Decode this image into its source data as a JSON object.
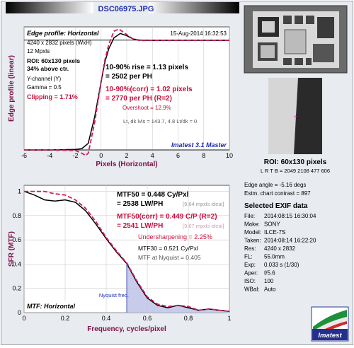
{
  "file_title": "DSC06975.JPG",
  "top_plot": {
    "heading": "Edge profile: Horizontal",
    "timestamp": "15-Aug-2014 16:32:53",
    "info_lines": [
      "4240 x 2832 pixels (WxH)",
      "12 Mpxls"
    ],
    "roi_line1": "ROI: 60x130 pixels",
    "roi_line2": "34% above ctr.",
    "channel": "Y-channel (Y)",
    "gamma": "Gamma = 0.5",
    "clipping": "Clipping = 1.71%",
    "rise_line1": "10-90% rise = 1.13 pixels",
    "rise_line2": "= 2502 per PH",
    "corr_line1": "10-90%(corr) = 1.02 pixels",
    "corr_line2": "= 2770 per PH  (R=2)",
    "overshoot": "Overshoot = 12.9%",
    "lt_dk": "Lt, dk lvls = 143.7, 4.8   Lt/dk = 0",
    "brand": "Imatest 3.1 Master",
    "ylabel": "Edge profile (linear)",
    "xlabel": "Pixels (Horizontal)"
  },
  "bottom_plot": {
    "mtf50_line1": "MTF50 = 0.448 Cy/Pxl",
    "mtf50_line2": "= 2538 LW/PH",
    "mtf50_ideal": "[9.64 mpxls ideal]",
    "mtf50c_line1": "MTF50(corr) = 0.449 C/P  (R=2)",
    "mtf50c_line2": "= 2541 LW/PH",
    "mtf50c_ideal": "[9.67 mpxls ideal]",
    "undersharpening": "Undersharpening = 2.25%",
    "mtf30": "MTF30 = 0.521 Cy/Pxl",
    "nyquist_mtf": "MTF at Nyquist = 0.405",
    "nyquist_label": "Nyquist freq.",
    "corner_label": "MTF: Horizontal",
    "ylabel": "SFR (MTF)",
    "xlabel": "Frequency, cycles/pixel"
  },
  "side": {
    "roi_title": "ROI:  60x130 pixels",
    "roi_coords": "L R T B = 2049 2108  477 606",
    "edge_angle": "Edge angle = -5.16 degs",
    "contrast": "Estm. chart contrast = 897",
    "exif_title": "Selected EXIF data",
    "exif": [
      {
        "k": "File:",
        "v": "2014:08:15 16:30:04"
      },
      {
        "k": "Make:",
        "v": "SONY"
      },
      {
        "k": "Model:",
        "v": "ILCE-7S"
      },
      {
        "k": "Taken:",
        "v": "2014:08:14 16:22:20"
      },
      {
        "k": "Res:",
        "v": "4240 x 2832"
      },
      {
        "k": "FL:",
        "v": "55.0mm"
      },
      {
        "k": "Exp:",
        "v": "0.033 s  (1/30)"
      },
      {
        "k": "Aper:",
        "v": "f/5.6"
      },
      {
        "k": "ISO:",
        "v": "100"
      },
      {
        "k": "WBal:",
        "v": "Auto"
      }
    ],
    "logo_text": "Imatest"
  },
  "colors": {
    "measured": "#000000",
    "corrected": "#cc1f5a",
    "accent": "#c8103c",
    "brand_blue": "#1f2fa8"
  },
  "chart_data": [
    {
      "type": "line",
      "title": "Edge profile: Horizontal",
      "xlabel": "Pixels (Horizontal)",
      "ylabel": "Edge profile (linear)",
      "xlim": [
        -6,
        10
      ],
      "ylim": [
        0,
        1.12
      ],
      "xticks": [
        -6,
        -4,
        -2,
        0,
        2,
        4,
        6,
        8,
        10
      ],
      "grid": true,
      "series": [
        {
          "style": "solid",
          "color": "#000000",
          "x": [
            -6,
            -4,
            -2,
            -1.5,
            -1,
            -0.5,
            0,
            0.3,
            0.6,
            1,
            1.5,
            2,
            2.5,
            3,
            4,
            6,
            8,
            10
          ],
          "y": [
            0,
            0,
            0.005,
            0.012,
            0.06,
            0.3,
            0.62,
            0.8,
            0.92,
            1.02,
            1.06,
            1.04,
            1.01,
            1,
            0.997,
            0.998,
            0.998,
            0.997
          ]
        },
        {
          "style": "dashed",
          "color": "#cc1f5a",
          "x": [
            -6,
            -4,
            -2,
            -1.5,
            -1.2,
            -1,
            -0.5,
            0,
            0.3,
            0.6,
            1,
            1.4,
            2,
            2.5,
            3,
            4,
            6,
            8,
            10
          ],
          "y": [
            0,
            0,
            -0.005,
            -0.03,
            -0.05,
            -0.03,
            0.25,
            0.62,
            0.82,
            0.96,
            1.08,
            1.1,
            1.05,
            1.01,
            0.995,
            0.997,
            0.998,
            0.998,
            0.997
          ]
        }
      ]
    },
    {
      "type": "line",
      "title": "MTF: Horizontal",
      "xlabel": "Frequency, cycles/pixel",
      "ylabel": "SFR (MTF)",
      "xlim": [
        0,
        1
      ],
      "ylim": [
        0,
        1.05
      ],
      "xticks": [
        0,
        0.2,
        0.4,
        0.6,
        0.8,
        1
      ],
      "yticks": [
        0,
        0.2,
        0.4,
        0.6,
        0.8,
        1
      ],
      "grid": true,
      "nyquist": 0.5,
      "series": [
        {
          "style": "solid",
          "color": "#000000",
          "x": [
            0,
            0.05,
            0.1,
            0.15,
            0.2,
            0.25,
            0.3,
            0.35,
            0.4,
            0.45,
            0.5,
            0.55,
            0.6,
            0.65,
            0.7,
            0.75,
            0.8,
            0.85,
            0.9,
            0.95,
            1
          ],
          "y": [
            1,
            0.97,
            0.93,
            0.92,
            0.93,
            0.91,
            0.84,
            0.73,
            0.61,
            0.5,
            0.405,
            0.25,
            0.12,
            0.06,
            0.04,
            0.06,
            0.04,
            0.02,
            0.03,
            0.02,
            0.01
          ]
        },
        {
          "style": "dashed",
          "color": "#cc1f5a",
          "x": [
            0,
            0.05,
            0.1,
            0.15,
            0.2,
            0.25,
            0.3,
            0.35,
            0.4,
            0.45,
            0.5,
            0.55,
            0.6,
            0.65,
            0.7,
            0.75,
            0.8,
            0.85,
            0.9,
            0.95,
            1
          ],
          "y": [
            1,
            1,
            1,
            0.98,
            0.97,
            0.93,
            0.86,
            0.75,
            0.62,
            0.51,
            0.41,
            0.26,
            0.13,
            0.07,
            0.05,
            0.06,
            0.05,
            0.02,
            0.03,
            0.02,
            0.01
          ]
        }
      ]
    }
  ]
}
